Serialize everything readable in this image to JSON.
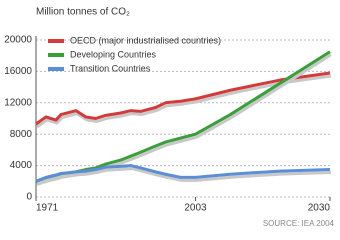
{
  "chart_data": {
    "type": "line",
    "title": "Million tonnes of CO₂",
    "source": "SOURCE: IEA 2004",
    "x": [
      1971,
      1973,
      1975,
      1976,
      1979,
      1981,
      1983,
      1985,
      1988,
      1990,
      1992,
      1995,
      1997,
      2000,
      2003,
      2010,
      2020,
      2030
    ],
    "series": [
      {
        "name": "OECD (major industrialised countries)",
        "color": "#d43a3a",
        "values": [
          9300,
          10200,
          9800,
          10500,
          11000,
          10200,
          10000,
          10400,
          10700,
          11000,
          10900,
          11400,
          12000,
          12200,
          12500,
          13600,
          14900,
          15800
        ]
      },
      {
        "name": "Developing Countries",
        "color": "#3a9e3a",
        "values": [
          2000,
          2400,
          2700,
          2900,
          3200,
          3500,
          3700,
          4200,
          4700,
          5200,
          5700,
          6500,
          7000,
          7500,
          8000,
          10500,
          14500,
          18500
        ]
      },
      {
        "name": "Transition Countries",
        "color": "#5b8ed6",
        "values": [
          2000,
          2500,
          2800,
          3000,
          3200,
          3300,
          3500,
          3800,
          3900,
          4000,
          3700,
          3200,
          2900,
          2500,
          2500,
          2900,
          3300,
          3500
        ]
      }
    ],
    "xlim": [
      1971,
      2030
    ],
    "xticks": [
      1971,
      2003,
      2030
    ],
    "ylim": [
      0,
      20000
    ],
    "yticks": [
      0,
      4000,
      8000,
      12000,
      16000,
      20000
    ],
    "grid": true,
    "legend": "top-left"
  }
}
